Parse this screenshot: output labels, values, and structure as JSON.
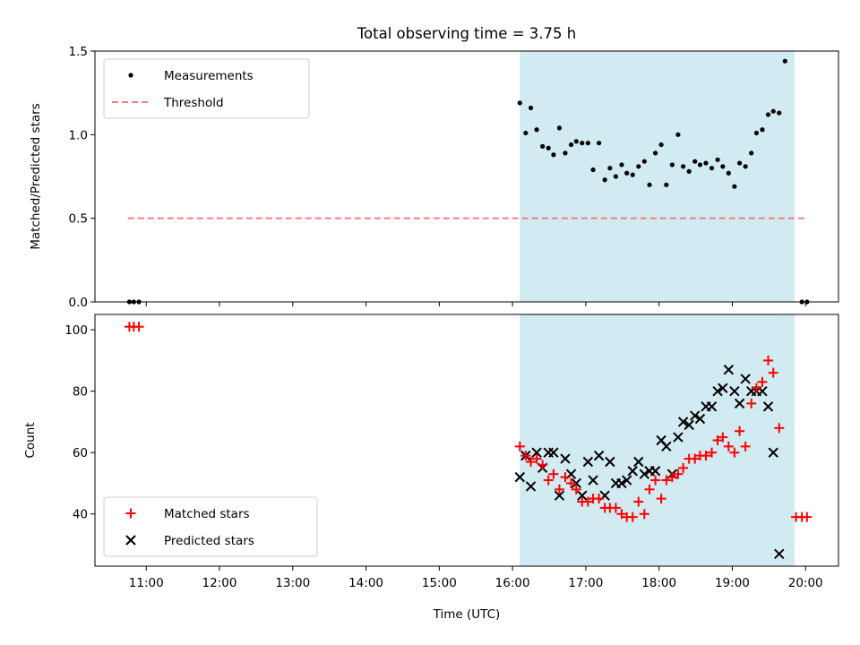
{
  "chart_data": [
    {
      "type": "scatter",
      "title": "Total observing time = 3.75 h",
      "xlabel": "",
      "ylabel": "Matched/Predicted stars",
      "xlim": [
        10.3,
        20.45
      ],
      "ylim": [
        0,
        1.5
      ],
      "yticks": [
        0.0,
        0.5,
        1.0,
        1.5
      ],
      "ytick_labels": [
        "0.0",
        "0.5",
        "1.0",
        "1.5"
      ],
      "shaded_region": {
        "from": 16.1,
        "to": 19.85,
        "color": "#add8e6"
      },
      "legend_location": "upper left",
      "series": [
        {
          "name": "Measurements",
          "marker": "dot",
          "color": "#000000",
          "points": [
            [
              10.77,
              0.0
            ],
            [
              10.83,
              0.0
            ],
            [
              10.9,
              0.0
            ],
            [
              16.1,
              1.19
            ],
            [
              16.18,
              1.01
            ],
            [
              16.25,
              1.16
            ],
            [
              16.33,
              1.03
            ],
            [
              16.41,
              0.93
            ],
            [
              16.49,
              0.92
            ],
            [
              16.56,
              0.88
            ],
            [
              16.64,
              1.04
            ],
            [
              16.72,
              0.89
            ],
            [
              16.8,
              0.94
            ],
            [
              16.87,
              0.96
            ],
            [
              16.95,
              0.95
            ],
            [
              17.03,
              0.95
            ],
            [
              17.1,
              0.79
            ],
            [
              17.18,
              0.95
            ],
            [
              17.26,
              0.73
            ],
            [
              17.33,
              0.8
            ],
            [
              17.41,
              0.75
            ],
            [
              17.49,
              0.82
            ],
            [
              17.56,
              0.77
            ],
            [
              17.64,
              0.76
            ],
            [
              17.72,
              0.81
            ],
            [
              17.8,
              0.84
            ],
            [
              17.87,
              0.7
            ],
            [
              17.95,
              0.89
            ],
            [
              18.03,
              0.94
            ],
            [
              18.1,
              0.7
            ],
            [
              18.18,
              0.82
            ],
            [
              18.26,
              1.0
            ],
            [
              18.33,
              0.81
            ],
            [
              18.41,
              0.78
            ],
            [
              18.49,
              0.84
            ],
            [
              18.56,
              0.82
            ],
            [
              18.64,
              0.83
            ],
            [
              18.72,
              0.8
            ],
            [
              18.8,
              0.85
            ],
            [
              18.87,
              0.81
            ],
            [
              18.95,
              0.77
            ],
            [
              19.03,
              0.69
            ],
            [
              19.1,
              0.83
            ],
            [
              19.18,
              0.81
            ],
            [
              19.26,
              0.89
            ],
            [
              19.33,
              1.01
            ],
            [
              19.41,
              1.03
            ],
            [
              19.49,
              1.12
            ],
            [
              19.56,
              1.14
            ],
            [
              19.64,
              1.13
            ],
            [
              19.72,
              1.44
            ],
            [
              19.95,
              0.0
            ],
            [
              20.02,
              0.0
            ]
          ]
        },
        {
          "name": "Threshold",
          "type": "line",
          "style": "dashed",
          "color": "#f08080",
          "points": [
            [
              10.75,
              0.5
            ],
            [
              20.0,
              0.5
            ]
          ]
        }
      ]
    },
    {
      "type": "scatter",
      "title": "",
      "xlabel": "Time (UTC)",
      "ylabel": "Count",
      "xlim": [
        10.3,
        20.45
      ],
      "ylim": [
        23,
        105
      ],
      "xticks": [
        11,
        12,
        13,
        14,
        15,
        16,
        17,
        18,
        19,
        20
      ],
      "xtick_labels": [
        "11:00",
        "12:00",
        "13:00",
        "14:00",
        "15:00",
        "16:00",
        "17:00",
        "18:00",
        "19:00",
        "20:00"
      ],
      "yticks": [
        40,
        60,
        80,
        100
      ],
      "ytick_labels": [
        "40",
        "60",
        "80",
        "100"
      ],
      "shaded_region": {
        "from": 16.1,
        "to": 19.85,
        "color": "#add8e6"
      },
      "legend_location": "lower left",
      "series": [
        {
          "name": "Matched stars",
          "marker": "plus",
          "color": "#ff0000",
          "points": [
            [
              10.77,
              101
            ],
            [
              10.83,
              101
            ],
            [
              10.9,
              101
            ],
            [
              16.1,
              62
            ],
            [
              16.18,
              59
            ],
            [
              16.25,
              57
            ],
            [
              16.33,
              58
            ],
            [
              16.41,
              56
            ],
            [
              16.49,
              51
            ],
            [
              16.56,
              53
            ],
            [
              16.64,
              48
            ],
            [
              16.72,
              52
            ],
            [
              16.8,
              50
            ],
            [
              16.87,
              48
            ],
            [
              16.95,
              44
            ],
            [
              17.03,
              44
            ],
            [
              17.1,
              45
            ],
            [
              17.18,
              45
            ],
            [
              17.26,
              42
            ],
            [
              17.33,
              42
            ],
            [
              17.41,
              42
            ],
            [
              17.49,
              40
            ],
            [
              17.56,
              39
            ],
            [
              17.64,
              39
            ],
            [
              17.72,
              44
            ],
            [
              17.8,
              40
            ],
            [
              17.87,
              48
            ],
            [
              17.95,
              51
            ],
            [
              18.03,
              45
            ],
            [
              18.1,
              51
            ],
            [
              18.18,
              52
            ],
            [
              18.26,
              53
            ],
            [
              18.33,
              55
            ],
            [
              18.41,
              58
            ],
            [
              18.49,
              58
            ],
            [
              18.56,
              59
            ],
            [
              18.64,
              59
            ],
            [
              18.72,
              60
            ],
            [
              18.8,
              64
            ],
            [
              18.87,
              65
            ],
            [
              18.95,
              62
            ],
            [
              19.03,
              60
            ],
            [
              19.1,
              67
            ],
            [
              19.18,
              62
            ],
            [
              19.26,
              76
            ],
            [
              19.33,
              81
            ],
            [
              19.41,
              83
            ],
            [
              19.49,
              90
            ],
            [
              19.56,
              86
            ],
            [
              19.64,
              68
            ],
            [
              19.87,
              39
            ],
            [
              19.95,
              39
            ],
            [
              20.02,
              39
            ]
          ]
        },
        {
          "name": "Predicted stars",
          "marker": "x",
          "color": "#000000",
          "points": [
            [
              16.1,
              52
            ],
            [
              16.18,
              59
            ],
            [
              16.25,
              49
            ],
            [
              16.33,
              60
            ],
            [
              16.41,
              55
            ],
            [
              16.49,
              60
            ],
            [
              16.56,
              60
            ],
            [
              16.64,
              46
            ],
            [
              16.72,
              58
            ],
            [
              16.8,
              53
            ],
            [
              16.87,
              50
            ],
            [
              16.95,
              46
            ],
            [
              17.03,
              57
            ],
            [
              17.1,
              51
            ],
            [
              17.18,
              59
            ],
            [
              17.26,
              46
            ],
            [
              17.33,
              57
            ],
            [
              17.41,
              50
            ],
            [
              17.49,
              50
            ],
            [
              17.56,
              51
            ],
            [
              17.64,
              54
            ],
            [
              17.72,
              57
            ],
            [
              17.8,
              53
            ],
            [
              17.87,
              54
            ],
            [
              17.95,
              54
            ],
            [
              18.03,
              64
            ],
            [
              18.1,
              62
            ],
            [
              18.18,
              53
            ],
            [
              18.26,
              65
            ],
            [
              18.33,
              70
            ],
            [
              18.41,
              69
            ],
            [
              18.49,
              72
            ],
            [
              18.56,
              71
            ],
            [
              18.64,
              75
            ],
            [
              18.72,
              75
            ],
            [
              18.8,
              80
            ],
            [
              18.87,
              81
            ],
            [
              18.95,
              87
            ],
            [
              19.03,
              80
            ],
            [
              19.1,
              76
            ],
            [
              19.18,
              84
            ],
            [
              19.26,
              80
            ],
            [
              19.33,
              80
            ],
            [
              19.41,
              80
            ],
            [
              19.49,
              75
            ],
            [
              19.56,
              60
            ],
            [
              19.64,
              27
            ]
          ]
        }
      ]
    }
  ]
}
